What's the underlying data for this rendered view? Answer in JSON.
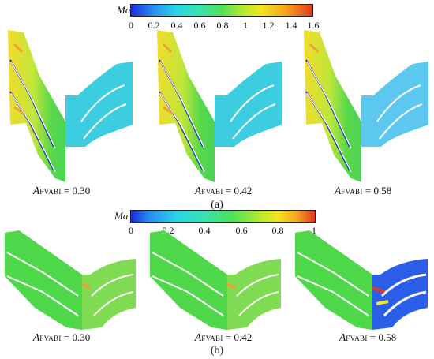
{
  "panel_a": {
    "colorbar": {
      "label": "Ma",
      "ticks": [
        "0",
        "0.2",
        "0.4",
        "0.6",
        "0.8",
        "1",
        "1.2",
        "1.4",
        "1.6"
      ]
    },
    "cases": [
      {
        "symbol": "A",
        "subscript": "FVABI",
        "value_text": " = 0.30"
      },
      {
        "symbol": "A",
        "subscript": "FVABI",
        "value_text": " = 0.42"
      },
      {
        "symbol": "A",
        "subscript": "FVABI",
        "value_text": " = 0.58"
      }
    ],
    "caption": "(a)"
  },
  "panel_b": {
    "colorbar": {
      "label": "Ma",
      "ticks": [
        "0",
        "0.2",
        "0.4",
        "0.6",
        "0.8",
        "1"
      ]
    },
    "cases": [
      {
        "symbol": "A",
        "subscript": "FVABI",
        "value_text": " = 0.30"
      },
      {
        "symbol": "A",
        "subscript": "FVABI",
        "value_text": " = 0.42"
      },
      {
        "symbol": "A",
        "subscript": "FVABI",
        "value_text": " = 0.58"
      }
    ],
    "caption": "(b)"
  },
  "colors": {
    "green": "#4fd84a",
    "yellow": "#e8e42a",
    "orange": "#f0a030",
    "cyan": "#38d6e0",
    "light_blue": "#5cc8f0",
    "blue": "#1a40e0"
  }
}
